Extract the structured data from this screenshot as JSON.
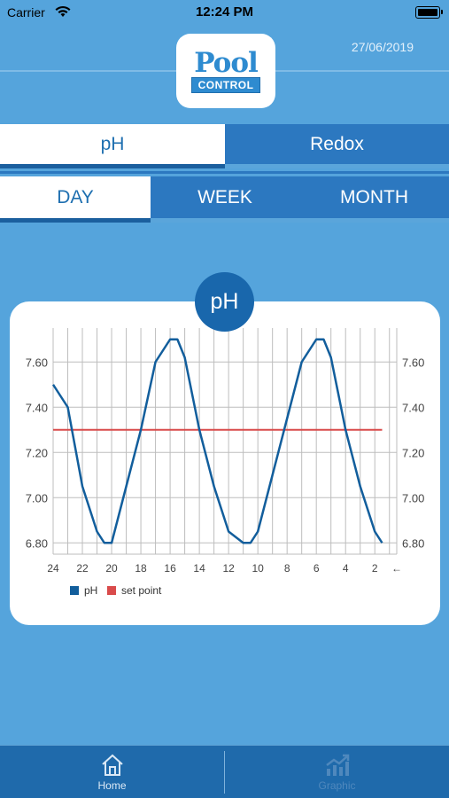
{
  "status_bar": {
    "carrier": "Carrier",
    "time": "12:24 PM"
  },
  "header": {
    "logo_top": "Pool",
    "logo_bottom": "CONTROL",
    "date": "27/06/2019"
  },
  "tabs_sensor": [
    {
      "label": "pH",
      "active": true
    },
    {
      "label": "Redox",
      "active": false
    }
  ],
  "tabs_period": [
    {
      "label": "DAY",
      "active": true
    },
    {
      "label": "WEEK",
      "active": false
    },
    {
      "label": "MONTH",
      "active": false
    }
  ],
  "chart_badge": "pH",
  "chart_data": {
    "type": "line",
    "title": "",
    "xlabel": "",
    "ylabel": "",
    "x_ticks": [
      "24",
      "22",
      "20",
      "18",
      "16",
      "14",
      "12",
      "10",
      "8",
      "6",
      "4",
      "2",
      "←"
    ],
    "x": [
      24,
      23,
      22,
      21,
      20.5,
      20,
      19,
      18,
      17,
      16,
      15.5,
      15,
      14,
      13,
      12,
      11,
      10.5,
      10,
      9,
      8,
      7,
      6,
      5.5,
      5,
      4,
      3,
      2,
      1.5,
      1.5
    ],
    "ylim": [
      6.75,
      7.75
    ],
    "y_ticks": [
      "6.80",
      "7.00",
      "7.20",
      "7.40",
      "7.60"
    ],
    "series": [
      {
        "name": "pH",
        "color": "#125e9c",
        "values": [
          7.5,
          7.4,
          7.05,
          6.85,
          6.8,
          6.8,
          7.05,
          7.3,
          7.6,
          7.7,
          7.7,
          7.62,
          7.3,
          7.05,
          6.85,
          6.8,
          6.8,
          6.85,
          7.1,
          7.35,
          7.6,
          7.7,
          7.7,
          7.62,
          7.3,
          7.05,
          6.85,
          6.8,
          6.8
        ]
      },
      {
        "name": "set point",
        "color": "#d94b4b",
        "values": [
          7.3,
          7.3,
          7.3,
          7.3,
          7.3,
          7.3,
          7.3,
          7.3,
          7.3,
          7.3,
          7.3,
          7.3,
          7.3,
          7.3,
          7.3,
          7.3,
          7.3,
          7.3,
          7.3,
          7.3,
          7.3,
          7.3,
          7.3,
          7.3,
          7.3,
          7.3,
          7.3,
          7.3,
          7.3
        ]
      }
    ],
    "grid": true,
    "legend": "bottom-left"
  },
  "bottom_nav": [
    {
      "label": "Home",
      "icon": "home-icon",
      "active": true
    },
    {
      "label": "Graphic",
      "icon": "graphic-icon",
      "active": false
    }
  ]
}
